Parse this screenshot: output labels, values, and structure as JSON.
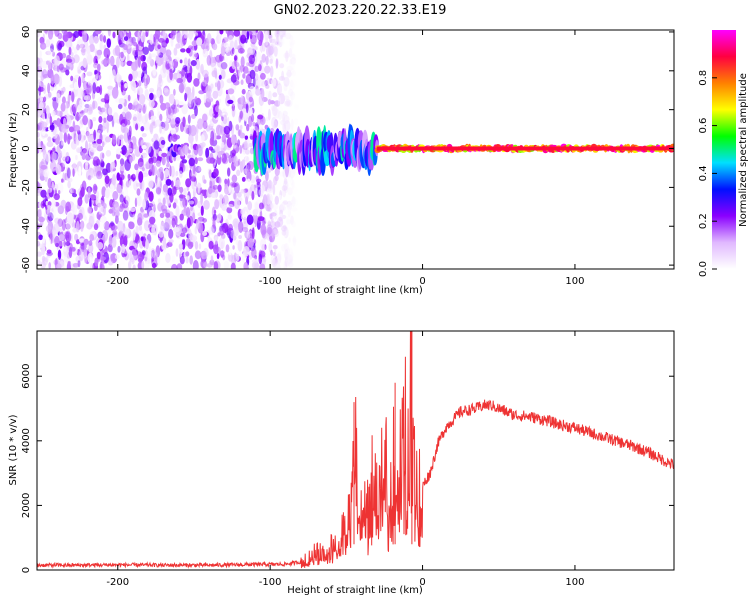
{
  "figure": {
    "title": "GN02.2023.220.22.33.E19"
  },
  "chart_data": [
    {
      "type": "heatmap",
      "xlabel": "Height of straight line (km)",
      "ylabel": "Frequency (Hz)",
      "xlim": [
        -253,
        165
      ],
      "ylim": [
        -62,
        61
      ],
      "x_ticks": [
        "-200",
        "-100",
        "0",
        "100"
      ],
      "x_tick_values": [
        -200,
        -100,
        0,
        100
      ],
      "y_ticks": [
        "-60",
        "-40",
        "-20",
        "0",
        "20",
        "40",
        "60"
      ],
      "y_tick_values": [
        -60,
        -40,
        -20,
        0,
        20,
        40,
        60
      ],
      "grid": false,
      "regions": [
        {
          "x_range": [
            -253,
            -82
          ],
          "frequency_range": [
            -62,
            61
          ],
          "amplitude_range": [
            0.0,
            0.25
          ],
          "description": "broadband noise"
        },
        {
          "x_range": [
            -165,
            -155
          ],
          "frequency_range": [
            -4,
            3
          ],
          "amplitude_range": [
            0.1,
            0.3
          ]
        },
        {
          "x_range": [
            -110,
            -30
          ],
          "frequency_range": [
            -12,
            10
          ],
          "amplitude_range": [
            0.1,
            0.5
          ]
        },
        {
          "x_range": [
            -30,
            165
          ],
          "frequency_range": [
            -2,
            2
          ],
          "amplitude_range": [
            0.6,
            1.0
          ]
        }
      ],
      "colorbar": {
        "label": "Normalized spectral amplitude",
        "ticks": [
          "0.0",
          "0.2",
          "0.4",
          "0.6",
          "0.8"
        ],
        "tick_values": [
          0.0,
          0.2,
          0.4,
          0.6,
          0.8
        ],
        "range": [
          0,
          1
        ],
        "colormap_stops": [
          "#ffffff",
          "#e0b8ff",
          "#8a00ff",
          "#0010ff",
          "#00e0ff",
          "#00ff00",
          "#ffff00",
          "#ff8000",
          "#ff0040",
          "#ff00ff"
        ]
      }
    },
    {
      "type": "line",
      "xlabel": "Height of straight line (km)",
      "ylabel": "SNR (10 * v/v)",
      "xlim": [
        -253,
        165
      ],
      "ylim": [
        0,
        7400
      ],
      "x_ticks": [
        "-200",
        "-100",
        "0",
        "100"
      ],
      "x_tick_values": [
        -200,
        -100,
        0,
        100
      ],
      "y_ticks": [
        "0",
        "2000",
        "4000",
        "6000"
      ],
      "y_tick_values": [
        0,
        2000,
        4000,
        6000
      ],
      "grid": false,
      "color": "#ee3333",
      "series": [
        {
          "x": [
            -253,
            -230,
            -200,
            -170,
            -140,
            -110,
            -90,
            -80,
            -75,
            -70,
            -65,
            -60,
            -55,
            -50,
            -47,
            -45,
            -43,
            -40,
            -37,
            -35,
            -33,
            -30,
            -28,
            -25,
            -22,
            -20,
            -18,
            -15,
            -13,
            -11,
            -9,
            -7,
            -5,
            -3,
            0,
            5,
            10,
            15,
            20,
            25,
            30,
            35,
            40,
            45,
            50,
            55,
            60,
            70,
            80,
            90,
            100,
            110,
            120,
            130,
            140,
            150,
            160,
            165
          ],
          "y": [
            150,
            150,
            160,
            150,
            150,
            170,
            180,
            250,
            380,
            600,
            500,
            800,
            900,
            1400,
            1800,
            5200,
            2800,
            1500,
            2400,
            1600,
            3000,
            2400,
            2100,
            4000,
            2600,
            2600,
            5800,
            3200,
            4100,
            4400,
            3400,
            7400,
            3800,
            2600,
            2600,
            3000,
            3900,
            4400,
            4650,
            4900,
            4950,
            5000,
            5100,
            5100,
            5000,
            4900,
            4800,
            4750,
            4650,
            4500,
            4400,
            4250,
            4100,
            3950,
            3800,
            3600,
            3350,
            3250
          ]
        }
      ],
      "peaks": [
        {
          "x": -45,
          "y": 5200
        },
        {
          "x": -18,
          "y": 5800
        },
        {
          "x": -7,
          "y": 7400
        }
      ]
    }
  ]
}
